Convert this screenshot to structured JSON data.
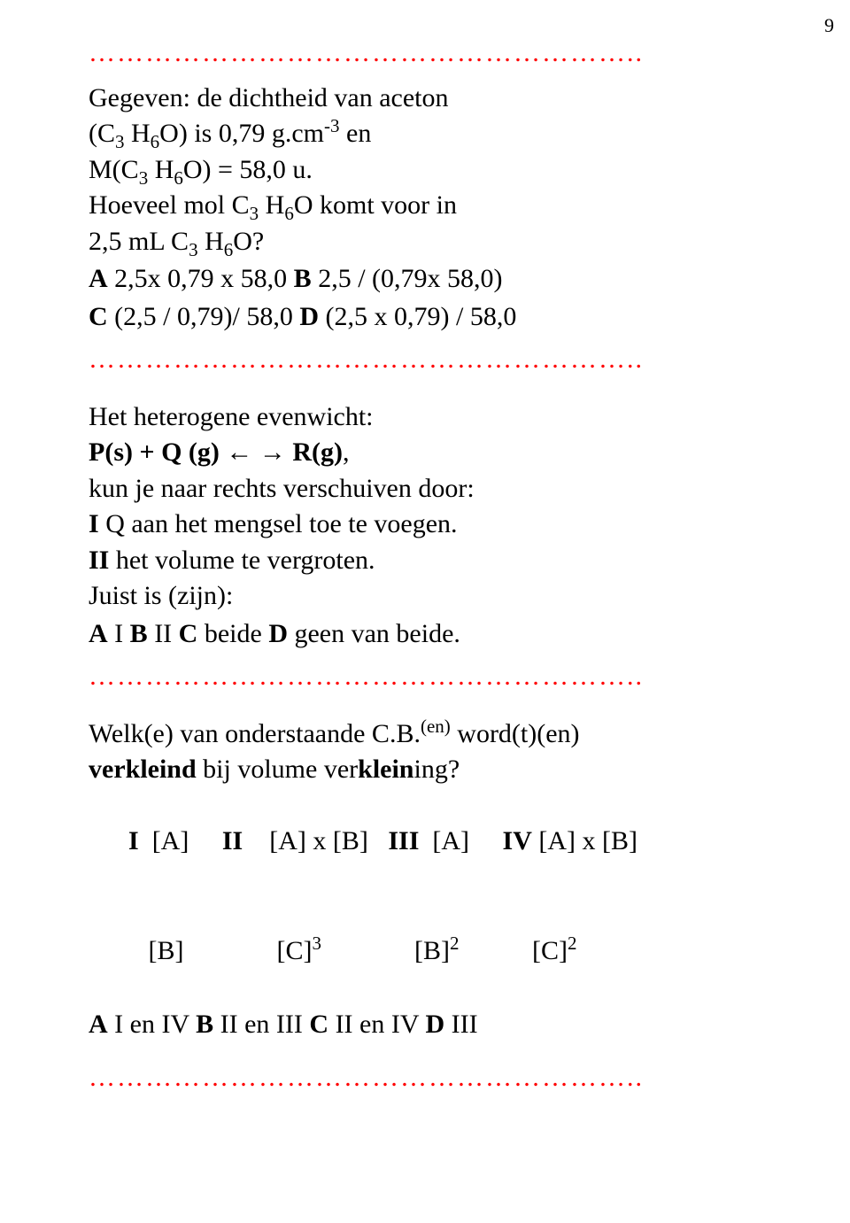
{
  "pageNumber": "9",
  "dotLine": "…………………………………………………..",
  "q1": {
    "line1_a": "Gegeven: de dichtheid van aceton",
    "line2_a": "(C",
    "line2_b": "3",
    "line2_c": " H",
    "line2_d": "6",
    "line2_e": "O) is 0,79 g.cm",
    "line2_f": "-3",
    "line2_g": " en",
    "line3_a": "M(C",
    "line3_b": "3",
    "line3_c": " H",
    "line3_d": "6",
    "line3_e": "O) = 58,0 u.",
    "line4_a": "Hoeveel mol C",
    "line4_b": "3",
    "line4_c": " H",
    "line4_d": "6",
    "line4_e": "O komt voor in",
    "line5_a": " 2,5 mL C",
    "line5_b": "3",
    "line5_c": " H",
    "line5_d": "6",
    "line5_e": "O?",
    "ans1_a": "A",
    "ans1_b": "  2,5x 0,79 x 58,0 ",
    "ans1_c": "B",
    "ans1_d": " 2,5 / (0,79x 58,0)",
    "ans2_a": "C",
    "ans2_b": "  (2,5 / 0,79)/ 58,0  ",
    "ans2_c": "D",
    "ans2_d": " (2,5 x 0,79) / 58,0"
  },
  "q2": {
    "l1": "Het heterogene evenwicht:",
    "l2_a": "P(s) + Q (g) ",
    "l2_b": "←",
    "l2_c": " ",
    "l2_d": "→",
    "l2_e": " R(g)",
    "l2_f": ",",
    "l3": "kun je naar rechts verschuiven door:",
    "l4_a": "I",
    "l4_b": "   Q aan het mengsel toe te voegen.",
    "l5_a": "II",
    "l5_b": "  het volume te vergroten.",
    "l6": "Juist is (zijn):",
    "ans_a": "A",
    "ans_b": " I   ",
    "ans_c": "B",
    "ans_d": " II  ",
    "ans_e": "C",
    "ans_f": "  beide  ",
    "ans_g": "D",
    "ans_h": " geen van beide."
  },
  "q3": {
    "l1_a": "Welk(e) van onderstaande C.B.",
    "l1_sup": "(en)",
    "l1_b": " word(t)(en)",
    "l2_a": "verkleind",
    "l2_b": " bij volume ver",
    "l2_c": "klein",
    "l2_d": "ing?",
    "hdr_a": "I",
    "hdr_b": "  [A]     ",
    "hdr_c": "II",
    "hdr_d": "    [A] x [B]   ",
    "hdr_e": "III",
    "hdr_f": "  [A]     ",
    "hdr_g": "IV",
    "hdr_h": " [A] x [B]",
    "row_a": "   [B]              [C]",
    "row_b": "3",
    "row_c": "              [B]",
    "row_d": "2",
    "row_e": "           [C]",
    "row_f": "2",
    "ans_a": "A",
    "ans_b": " I en IV ",
    "ans_c": "B",
    "ans_d": " II en III ",
    "ans_e": "C",
    "ans_f": "  II en IV  ",
    "ans_g": "D",
    "ans_h": "  III"
  }
}
